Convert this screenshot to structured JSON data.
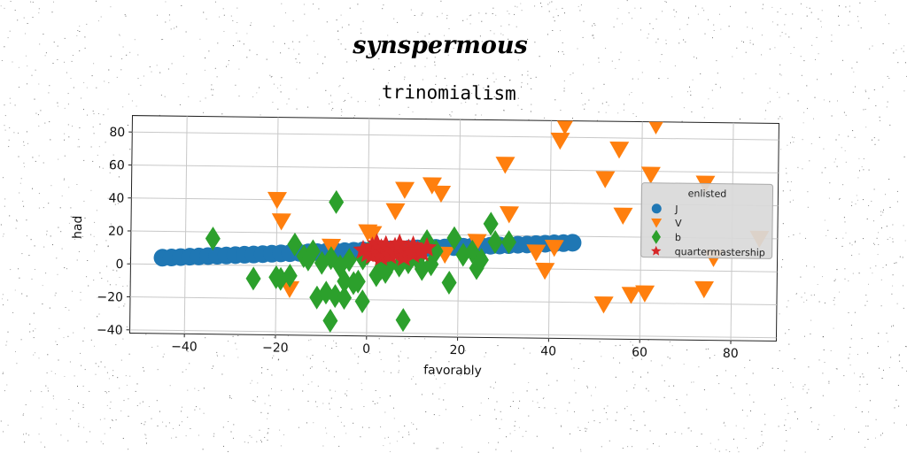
{
  "chart_data": {
    "type": "scatter",
    "suptitle": "synspermous",
    "title": "trinomialism",
    "xlabel": "favorably",
    "ylabel": "had",
    "xlim": [
      -52,
      90
    ],
    "ylim": [
      -42,
      90
    ],
    "xticks": [
      -40,
      -20,
      0,
      20,
      40,
      60,
      80
    ],
    "yticks": [
      -40,
      -20,
      0,
      20,
      40,
      60,
      80
    ],
    "grid": true,
    "legend": {
      "title": "enlisted",
      "position": "right"
    },
    "series": [
      {
        "name": "J",
        "marker": "circle",
        "color": "#1f77b4",
        "points": [
          [
            -45,
            4
          ],
          [
            -43,
            4.2
          ],
          [
            -41,
            4.5
          ],
          [
            -39,
            4.8
          ],
          [
            -37,
            5
          ],
          [
            -35,
            5.3
          ],
          [
            -33,
            5.6
          ],
          [
            -31,
            5.8
          ],
          [
            -29,
            6.1
          ],
          [
            -27,
            6.4
          ],
          [
            -25,
            6.6
          ],
          [
            -23,
            6.9
          ],
          [
            -21,
            7.2
          ],
          [
            -19,
            7.5
          ],
          [
            -17,
            7.7
          ],
          [
            -15,
            8
          ],
          [
            -13,
            8.3
          ],
          [
            -11,
            8.5
          ],
          [
            -9,
            8.8
          ],
          [
            -7,
            9.1
          ],
          [
            -5,
            9.3
          ],
          [
            -3,
            9.6
          ],
          [
            -1,
            9.9
          ],
          [
            1,
            10.2
          ],
          [
            3,
            10.4
          ],
          [
            5,
            10.7
          ],
          [
            7,
            11
          ],
          [
            9,
            11.2
          ],
          [
            11,
            11.5
          ],
          [
            13,
            11.8
          ],
          [
            15,
            12
          ],
          [
            17,
            12.3
          ],
          [
            19,
            12.6
          ],
          [
            21,
            12.9
          ],
          [
            23,
            13.1
          ],
          [
            25,
            13.4
          ],
          [
            27,
            13.7
          ],
          [
            29,
            13.9
          ],
          [
            31,
            14.2
          ],
          [
            33,
            14.5
          ],
          [
            35,
            14.7
          ],
          [
            37,
            15
          ],
          [
            39,
            15.3
          ],
          [
            41,
            15.6
          ],
          [
            43,
            15.8
          ],
          [
            45,
            16.1
          ]
        ]
      },
      {
        "name": "V",
        "marker": "triangle-down",
        "color": "#ff7f0e",
        "points": [
          [
            -20,
            40
          ],
          [
            -19,
            27
          ],
          [
            -17,
            -14
          ],
          [
            -8,
            12
          ],
          [
            0,
            21
          ],
          [
            1,
            20
          ],
          [
            6,
            34
          ],
          [
            8,
            47
          ],
          [
            14,
            50
          ],
          [
            16,
            45
          ],
          [
            17,
            8
          ],
          [
            24,
            16
          ],
          [
            30,
            63
          ],
          [
            31,
            33
          ],
          [
            37,
            10
          ],
          [
            39,
            -1
          ],
          [
            41,
            13
          ],
          [
            42,
            78
          ],
          [
            43,
            87
          ],
          [
            52,
            55
          ],
          [
            52,
            -21
          ],
          [
            56,
            33
          ],
          [
            58,
            -15
          ],
          [
            61,
            -14
          ],
          [
            62,
            58
          ],
          [
            63,
            88
          ],
          [
            55,
            73
          ],
          [
            74,
            53
          ],
          [
            74,
            -11
          ],
          [
            76,
            8
          ],
          [
            86,
            20
          ]
        ]
      },
      {
        "name": "b",
        "marker": "diamond",
        "color": "#2ca02c",
        "points": [
          [
            -34,
            16
          ],
          [
            -25,
            -8
          ],
          [
            -20,
            -7
          ],
          [
            -19,
            -8
          ],
          [
            -17,
            -6
          ],
          [
            -16,
            13
          ],
          [
            -14,
            6
          ],
          [
            -13,
            4
          ],
          [
            -12,
            9
          ],
          [
            -11,
            -19
          ],
          [
            -10,
            2
          ],
          [
            -9,
            -16
          ],
          [
            -8,
            5
          ],
          [
            -8,
            -33
          ],
          [
            -7,
            -18
          ],
          [
            -6,
            0
          ],
          [
            -5,
            -9
          ],
          [
            -5,
            -19
          ],
          [
            -4,
            4
          ],
          [
            -3,
            -10
          ],
          [
            -2,
            -9
          ],
          [
            -1,
            5
          ],
          [
            -1,
            -21
          ],
          [
            -7,
            39
          ],
          [
            0,
            8
          ],
          [
            2,
            -5
          ],
          [
            3,
            -1
          ],
          [
            4,
            -3
          ],
          [
            5,
            2
          ],
          [
            7,
            1
          ],
          [
            8,
            -32
          ],
          [
            9,
            3
          ],
          [
            11,
            5
          ],
          [
            12,
            -1
          ],
          [
            13,
            16
          ],
          [
            14,
            2
          ],
          [
            15,
            10
          ],
          [
            18,
            -9
          ],
          [
            19,
            18
          ],
          [
            21,
            8
          ],
          [
            23,
            10
          ],
          [
            24,
            0
          ],
          [
            25,
            5
          ],
          [
            27,
            27
          ],
          [
            28,
            16
          ],
          [
            31,
            16
          ]
        ]
      },
      {
        "name": "quartermastership",
        "marker": "star",
        "color": "#d62728",
        "points": [
          [
            -1,
            10
          ],
          [
            0,
            8
          ],
          [
            1,
            12
          ],
          [
            1,
            7
          ],
          [
            2,
            9
          ],
          [
            2,
            14
          ],
          [
            3,
            11
          ],
          [
            3,
            6
          ],
          [
            4,
            9
          ],
          [
            4,
            13
          ],
          [
            5,
            10
          ],
          [
            5,
            7
          ],
          [
            6,
            12
          ],
          [
            6,
            8
          ],
          [
            7,
            10
          ],
          [
            7,
            14
          ],
          [
            8,
            9
          ],
          [
            8,
            6
          ],
          [
            9,
            11
          ],
          [
            10,
            13
          ],
          [
            10,
            8
          ],
          [
            11,
            10
          ],
          [
            12,
            9
          ],
          [
            13,
            12
          ]
        ]
      }
    ]
  }
}
